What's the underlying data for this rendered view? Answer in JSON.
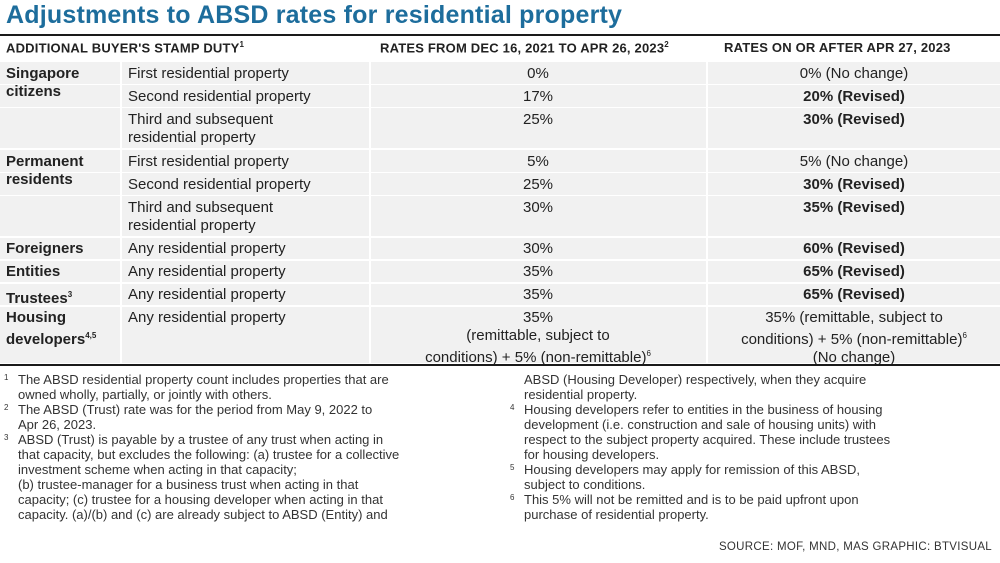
{
  "title": "Adjustments to ABSD rates for residential property",
  "header": {
    "col1": "ADDITIONAL BUYER'S STAMP DUTY",
    "col1_sup": "1",
    "col2": "RATES FROM DEC 16, 2021 TO APR 26, 2023",
    "col2_sup": "2",
    "col3": "RATES ON OR AFTER APR 27, 2023"
  },
  "rows": [
    {
      "category": "Singapore",
      "property": "First residential property",
      "rate1": "0%",
      "rate2": "0% (No change)"
    },
    {
      "category": "citizens",
      "property": "Second residential property",
      "rate1": "17%",
      "rate2": "20% (Revised)"
    },
    {
      "property_l1": "Third and subsequent",
      "property_l2": "residential property",
      "rate1": "25%",
      "rate2": "30% (Revised)"
    },
    {
      "category": "Permanent",
      "property": "First residential property",
      "rate1": "5%",
      "rate2": "5% (No change)"
    },
    {
      "category": "residents",
      "property": "Second residential property",
      "rate1": "25%",
      "rate2": "30% (Revised)"
    },
    {
      "property_l1": "Third and subsequent",
      "property_l2": "residential property",
      "rate1": "30%",
      "rate2": "35% (Revised)"
    },
    {
      "category": "Foreigners",
      "property": "Any residential property",
      "rate1": "30%",
      "rate2": "60% (Revised)"
    },
    {
      "category": "Entities",
      "property": "Any residential property",
      "rate1": "35%",
      "rate2": "65% (Revised)"
    },
    {
      "category": "Trustees",
      "category_sup": "3",
      "property": "Any residential property",
      "rate1": "35%",
      "rate2": "65% (Revised)"
    },
    {
      "category_l1": "Housing",
      "category_l2": "developers",
      "category_sup": "4,5",
      "property": "Any residential property",
      "rate1_l1": "35%",
      "rate1_l2": "(remittable, subject to",
      "rate1_l3": "conditions) + 5% (non-remittable)",
      "rate1_sup": "6",
      "rate2_l1": "35% (remittable, subject to",
      "rate2_l2": "conditions) + 5% (non-remittable)",
      "rate2_sup": "6",
      "rate2_l3": "(No change)"
    }
  ],
  "notes_left": [
    {
      "num": "1",
      "l1": "The ABSD residential property count includes properties that are",
      "l2": "owned wholly, partially, or jointly with others."
    },
    {
      "num": "2",
      "l1": "The ABSD (Trust) rate was for the period from May 9, 2022 to",
      "l2": "Apr 26, 2023."
    },
    {
      "num": "3",
      "l1": "ABSD (Trust) is payable by a trustee of any trust when acting in",
      "l2": "that capacity, but excludes the following: (a) trustee for a collective",
      "l3": "investment scheme when acting in that capacity;",
      "l4": "(b) trustee-manager for a business trust when acting in that",
      "l5": "capacity; (c) trustee for a housing developer when acting in that",
      "l6": "capacity. (a)/(b) and (c) are already subject to ABSD (Entity) and"
    }
  ],
  "notes_right": {
    "cont_l1": "ABSD (Housing Developer) respectively, when they acquire",
    "cont_l2": "residential property.",
    "n4": {
      "num": "4",
      "l1": "Housing developers refer to entities in the business of housing",
      "l2": "development (i.e. construction and sale of housing units) with",
      "l3": "respect to the subject property acquired. These include trustees",
      "l4": "for housing developers."
    },
    "n5": {
      "num": "5",
      "l1": "Housing developers may apply for remission of this ABSD,",
      "l2": "subject to conditions."
    },
    "n6": {
      "num": "6",
      "l1": "This 5% will not be remitted and is to be paid upfront upon",
      "l2": "purchase of residential property."
    }
  },
  "source": "SOURCE: MOF, MND, MAS   GRAPHIC: BTVISUAL"
}
